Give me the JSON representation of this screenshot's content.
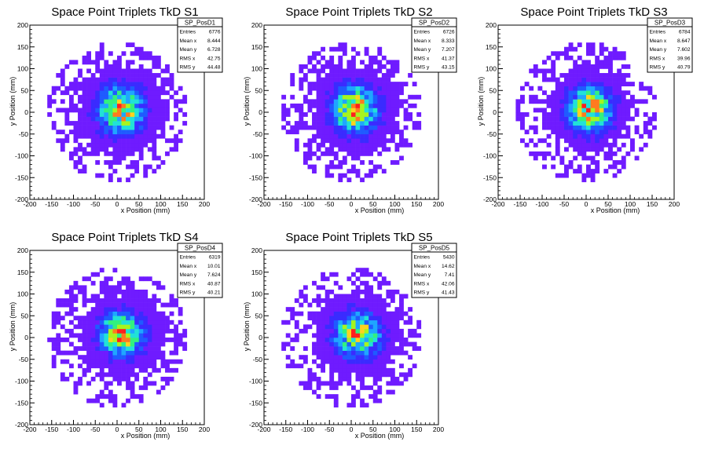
{
  "chart_data": [
    {
      "type": "heatmap",
      "title": "Space Point Triplets TkD S1",
      "xlabel": "x Position (mm)",
      "ylabel": "y Position (mm)",
      "xlim": [
        -200,
        200
      ],
      "ylim": [
        -200,
        200
      ],
      "xticks": [
        -200,
        -150,
        -100,
        -50,
        0,
        50,
        100,
        150,
        200
      ],
      "yticks": [
        -200,
        -150,
        -100,
        -50,
        0,
        50,
        100,
        150,
        200
      ],
      "stats": {
        "name": "SP_PosD1",
        "rows": [
          {
            "label": "Entries",
            "value": "6776"
          },
          {
            "label": "Mean x",
            "value": "8.444"
          },
          {
            "label": "Mean y",
            "value": "6.728"
          },
          {
            "label": "RMS x",
            "value": "42.75"
          },
          {
            "label": "RMS y",
            "value": "44.48"
          }
        ]
      },
      "distribution": {
        "entries": 6776,
        "mean_x": 8.444,
        "mean_y": 6.728,
        "rms_x": 42.75,
        "rms_y": 44.48,
        "radius": 160,
        "bin_width": 10
      },
      "palette": [
        "#6f1bff",
        "#3a2bff",
        "#1f5bff",
        "#1fa6ff",
        "#21e1d8",
        "#32f17e",
        "#a6f51f",
        "#ffd21f",
        "#ff7a1f",
        "#ff1f1f"
      ]
    },
    {
      "type": "heatmap",
      "title": "Space Point Triplets TkD S2",
      "xlabel": "x Position (mm)",
      "ylabel": "y Position (mm)",
      "xlim": [
        -200,
        200
      ],
      "ylim": [
        -200,
        200
      ],
      "xticks": [
        -200,
        -150,
        -100,
        -50,
        0,
        50,
        100,
        150,
        200
      ],
      "yticks": [
        -200,
        -150,
        -100,
        -50,
        0,
        50,
        100,
        150,
        200
      ],
      "stats": {
        "name": "SP_PosD2",
        "rows": [
          {
            "label": "Entries",
            "value": "6726"
          },
          {
            "label": "Mean x",
            "value": "8.333"
          },
          {
            "label": "Mean y",
            "value": "7.207"
          },
          {
            "label": "RMS x",
            "value": "41.37"
          },
          {
            "label": "RMS y",
            "value": "43.15"
          }
        ]
      },
      "distribution": {
        "entries": 6726,
        "mean_x": 8.333,
        "mean_y": 7.207,
        "rms_x": 41.37,
        "rms_y": 43.15,
        "radius": 160,
        "bin_width": 10
      },
      "palette": [
        "#6f1bff",
        "#3a2bff",
        "#1f5bff",
        "#1fa6ff",
        "#21e1d8",
        "#32f17e",
        "#a6f51f",
        "#ffd21f",
        "#ff7a1f",
        "#ff1f1f"
      ]
    },
    {
      "type": "heatmap",
      "title": "Space Point Triplets TkD S3",
      "xlabel": "x Position (mm)",
      "ylabel": "y Position (mm)",
      "xlim": [
        -200,
        200
      ],
      "ylim": [
        -200,
        200
      ],
      "xticks": [
        -200,
        -150,
        -100,
        -50,
        0,
        50,
        100,
        150,
        200
      ],
      "yticks": [
        -200,
        -150,
        -100,
        -50,
        0,
        50,
        100,
        150,
        200
      ],
      "stats": {
        "name": "SP_PosD3",
        "rows": [
          {
            "label": "Entries",
            "value": "6784"
          },
          {
            "label": "Mean x",
            "value": "8.647"
          },
          {
            "label": "Mean y",
            "value": "7.602"
          },
          {
            "label": "RMS x",
            "value": "39.96"
          },
          {
            "label": "RMS y",
            "value": "40.79"
          }
        ]
      },
      "distribution": {
        "entries": 6784,
        "mean_x": 8.647,
        "mean_y": 7.602,
        "rms_x": 39.96,
        "rms_y": 40.79,
        "radius": 160,
        "bin_width": 10
      },
      "palette": [
        "#6f1bff",
        "#3a2bff",
        "#1f5bff",
        "#1fa6ff",
        "#21e1d8",
        "#32f17e",
        "#a6f51f",
        "#ffd21f",
        "#ff7a1f",
        "#ff1f1f"
      ]
    },
    {
      "type": "heatmap",
      "title": "Space Point Triplets TkD S4",
      "xlabel": "x Position (mm)",
      "ylabel": "y Position (mm)",
      "xlim": [
        -200,
        200
      ],
      "ylim": [
        -200,
        200
      ],
      "xticks": [
        -200,
        -150,
        -100,
        -50,
        0,
        50,
        100,
        150,
        200
      ],
      "yticks": [
        -200,
        -150,
        -100,
        -50,
        0,
        50,
        100,
        150,
        200
      ],
      "stats": {
        "name": "SP_PosD4",
        "rows": [
          {
            "label": "Entries",
            "value": "6319"
          },
          {
            "label": "Mean x",
            "value": "10.01"
          },
          {
            "label": "Mean y",
            "value": "7.624"
          },
          {
            "label": "RMS x",
            "value": "40.87"
          },
          {
            "label": "RMS y",
            "value": "40.21"
          }
        ]
      },
      "distribution": {
        "entries": 6319,
        "mean_x": 10.01,
        "mean_y": 7.624,
        "rms_x": 40.87,
        "rms_y": 40.21,
        "radius": 160,
        "bin_width": 10
      },
      "palette": [
        "#6f1bff",
        "#3a2bff",
        "#1f5bff",
        "#1fa6ff",
        "#21e1d8",
        "#32f17e",
        "#a6f51f",
        "#ffd21f",
        "#ff7a1f",
        "#ff1f1f"
      ]
    },
    {
      "type": "heatmap",
      "title": "Space Point Triplets TkD S5",
      "xlabel": "x Position (mm)",
      "ylabel": "y Position (mm)",
      "xlim": [
        -200,
        200
      ],
      "ylim": [
        -200,
        200
      ],
      "xticks": [
        -200,
        -150,
        -100,
        -50,
        0,
        50,
        100,
        150,
        200
      ],
      "yticks": [
        -200,
        -150,
        -100,
        -50,
        0,
        50,
        100,
        150,
        200
      ],
      "stats": {
        "name": "SP_PosD5",
        "rows": [
          {
            "label": "Entries",
            "value": "5430"
          },
          {
            "label": "Mean x",
            "value": "14.62"
          },
          {
            "label": "Mean y",
            "value": "7.41"
          },
          {
            "label": "RMS x",
            "value": "42.06"
          },
          {
            "label": "RMS y",
            "value": "41.43"
          }
        ]
      },
      "distribution": {
        "entries": 5430,
        "mean_x": 14.62,
        "mean_y": 7.41,
        "rms_x": 42.06,
        "rms_y": 41.43,
        "radius": 160,
        "bin_width": 10
      },
      "palette": [
        "#6f1bff",
        "#3a2bff",
        "#1f5bff",
        "#1fa6ff",
        "#21e1d8",
        "#32f17e",
        "#a6f51f",
        "#ffd21f",
        "#ff7a1f",
        "#ff1f1f"
      ]
    }
  ]
}
